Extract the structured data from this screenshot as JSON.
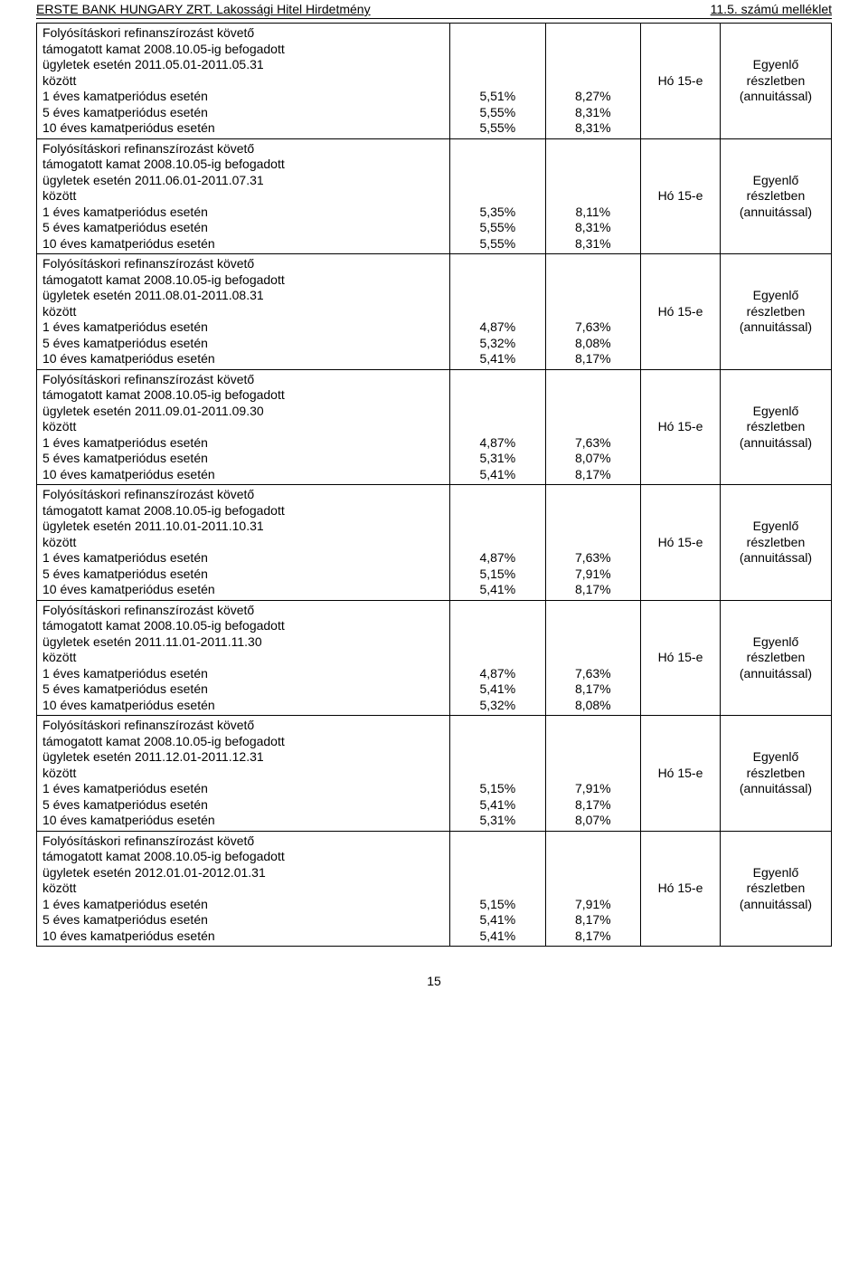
{
  "header": {
    "left": "ERSTE BANK HUNGARY ZRT. Lakossági Hitel Hirdetmény",
    "right": "11.5. számú melléklet"
  },
  "lines": {
    "l1": "1 éves kamatperiódus esetén",
    "l5": "5 éves kamatperiódus esetén",
    "l10": "10 éves kamatperiódus esetén"
  },
  "due": "Hó 15-e",
  "pay": {
    "line1": "Egyenlő részletben",
    "line2": "(annuitással)"
  },
  "sections": [
    {
      "title_part1": "Folyósításkori refinanszírozást követő",
      "title_part2": "támogatott kamat 2008.10.05-ig befogadott",
      "title_part3": "ügyletek esetén 2011.05.01-2011.05.31",
      "title_part4": "között",
      "r": [
        [
          "5,51%",
          "8,27%"
        ],
        [
          "5,55%",
          "8,31%"
        ],
        [
          "5,55%",
          "8,31%"
        ]
      ]
    },
    {
      "title_part1": "Folyósításkori refinanszírozást követő",
      "title_part2": "támogatott kamat 2008.10.05-ig befogadott",
      "title_part3": "ügyletek esetén 2011.06.01-2011.07.31",
      "title_part4": "között",
      "r": [
        [
          "5,35%",
          "8,11%"
        ],
        [
          "5,55%",
          "8,31%"
        ],
        [
          "5,55%",
          "8,31%"
        ]
      ]
    },
    {
      "title_part1": "Folyósításkori refinanszírozást követő",
      "title_part2": "támogatott kamat 2008.10.05-ig befogadott",
      "title_part3": "ügyletek esetén 2011.08.01-2011.08.31",
      "title_part4": "között",
      "r": [
        [
          "4,87%",
          "7,63%"
        ],
        [
          "5,32%",
          "8,08%"
        ],
        [
          "5,41%",
          "8,17%"
        ]
      ]
    },
    {
      "title_part1": "Folyósításkori refinanszírozást követő",
      "title_part2": "támogatott kamat 2008.10.05-ig befogadott",
      "title_part3": "ügyletek esetén 2011.09.01-2011.09.30",
      "title_part4": "között",
      "r": [
        [
          "4,87%",
          "7,63%"
        ],
        [
          "5,31%",
          "8,07%"
        ],
        [
          "5,41%",
          "8,17%"
        ]
      ]
    },
    {
      "title_part1": "Folyósításkori refinanszírozást követő",
      "title_part2": "támogatott kamat 2008.10.05-ig befogadott",
      "title_part3": "ügyletek esetén 2011.10.01-2011.10.31",
      "title_part4": "között",
      "r": [
        [
          "4,87%",
          "7,63%"
        ],
        [
          "5,15%",
          "7,91%"
        ],
        [
          "5,41%",
          "8,17%"
        ]
      ]
    },
    {
      "title_part1": "Folyósításkori refinanszírozást követő",
      "title_part2": "támogatott kamat 2008.10.05-ig befogadott",
      "title_part3": "ügyletek esetén 2011.11.01-2011.11.30",
      "title_part4": "között",
      "r": [
        [
          "4,87%",
          "7,63%"
        ],
        [
          "5,41%",
          "8,17%"
        ],
        [
          "5,32%",
          "8,08%"
        ]
      ]
    },
    {
      "title_part1": "Folyósításkori refinanszírozást követő",
      "title_part2": "támogatott kamat 2008.10.05-ig befogadott",
      "title_part3": "ügyletek esetén 2011.12.01-2011.12.31",
      "title_part4": "között",
      "r": [
        [
          "5,15%",
          "7,91%"
        ],
        [
          "5,41%",
          "8,17%"
        ],
        [
          "5,31%",
          "8,07%"
        ]
      ]
    },
    {
      "title_part1": "Folyósításkori refinanszírozást követő",
      "title_part2": "támogatott kamat 2008.10.05-ig befogadott",
      "title_part3": "ügyletek esetén 2012.01.01-2012.01.31",
      "title_part4": "között",
      "r": [
        [
          "5,15%",
          "7,91%"
        ],
        [
          "5,41%",
          "8,17%"
        ],
        [
          "5,41%",
          "8,17%"
        ]
      ]
    }
  ],
  "page_number": "15"
}
